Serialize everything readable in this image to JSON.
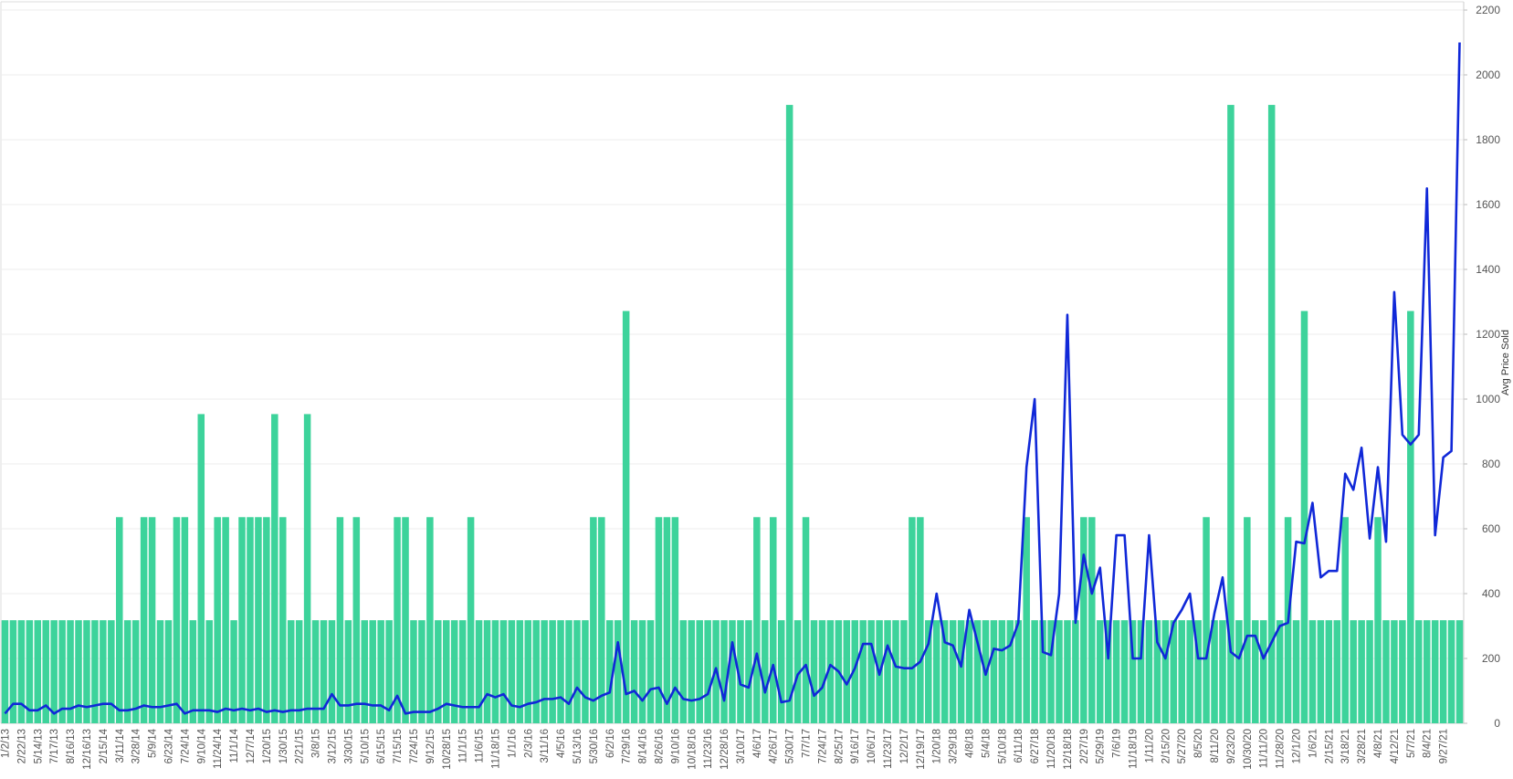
{
  "chart_data": {
    "type": "combo",
    "categories": [
      "1/2/13",
      null,
      "2/22/13",
      null,
      "5/14/13",
      null,
      "7/17/13",
      null,
      "8/16/13",
      null,
      "12/16/13",
      null,
      "2/15/14",
      null,
      "3/11/14",
      null,
      "3/28/14",
      null,
      "5/9/14",
      null,
      "6/23/14",
      null,
      "7/24/14",
      null,
      "9/10/14",
      null,
      "11/24/14",
      null,
      "11/1/14",
      null,
      "12/7/14",
      null,
      "1/20/15",
      null,
      "1/30/15",
      null,
      "2/21/15",
      null,
      "3/8/15",
      null,
      "3/12/15",
      null,
      "3/30/15",
      null,
      "5/10/15",
      null,
      "6/15/15",
      null,
      "7/15/15",
      null,
      "7/24/15",
      null,
      "9/12/15",
      null,
      "10/28/15",
      null,
      "11/1/15",
      null,
      "11/6/15",
      null,
      "11/18/15",
      null,
      "1/1/16",
      null,
      "2/3/16",
      null,
      "3/11/16",
      null,
      "4/5/16",
      null,
      "5/13/16",
      null,
      "5/30/16",
      null,
      "6/2/16",
      null,
      "7/29/16",
      null,
      "8/14/16",
      null,
      "8/26/16",
      null,
      "9/10/16",
      null,
      "10/18/16",
      null,
      "11/23/16",
      null,
      "12/28/16",
      null,
      "3/10/17",
      null,
      "4/6/17",
      null,
      "4/26/17",
      null,
      "5/30/17",
      null,
      "7/7/17",
      null,
      "7/24/17",
      null,
      "8/25/17",
      null,
      "9/16/17",
      null,
      "10/6/17",
      null,
      "11/23/17",
      null,
      "12/2/17",
      null,
      "12/19/17",
      null,
      "1/20/18",
      null,
      "3/29/18",
      null,
      "4/8/18",
      null,
      "5/4/18",
      null,
      "5/10/18",
      null,
      "6/11/18",
      null,
      "6/27/18",
      null,
      "11/20/18",
      null,
      "12/18/18",
      null,
      "2/27/19",
      null,
      "5/29/19",
      null,
      "7/6/19",
      null,
      "11/18/19",
      null,
      "1/11/20",
      null,
      "2/15/20",
      null,
      "5/27/20",
      null,
      "8/5/20",
      null,
      "8/11/20",
      null,
      "9/23/20",
      null,
      "10/30/20",
      null,
      "11/11/20",
      null,
      "11/28/20",
      null,
      "12/1/20",
      null,
      "1/6/21",
      null,
      "2/15/21",
      null,
      "3/18/21",
      null,
      "3/28/21",
      null,
      "4/8/21",
      null,
      "4/12/21",
      null,
      "5/7/21",
      null,
      "8/4/21",
      null,
      "9/27/21",
      null,
      null
    ],
    "series": [
      {
        "type": "bar",
        "color": "#3dd39b",
        "values": [
          1,
          1,
          1,
          1,
          1,
          1,
          1,
          1,
          1,
          1,
          1,
          1,
          1,
          1,
          2,
          1,
          1,
          2,
          2,
          1,
          1,
          2,
          2,
          1,
          3,
          1,
          2,
          2,
          1,
          2,
          2,
          2,
          2,
          3,
          2,
          1,
          1,
          3,
          1,
          1,
          1,
          2,
          1,
          2,
          1,
          1,
          1,
          1,
          2,
          2,
          1,
          1,
          2,
          1,
          1,
          1,
          1,
          2,
          1,
          1,
          1,
          1,
          1,
          1,
          1,
          1,
          1,
          1,
          1,
          1,
          1,
          1,
          2,
          2,
          1,
          1,
          4,
          1,
          1,
          1,
          2,
          2,
          2,
          1,
          1,
          1,
          1,
          1,
          1,
          1,
          1,
          1,
          2,
          1,
          2,
          1,
          6,
          1,
          2,
          1,
          1,
          1,
          1,
          1,
          1,
          1,
          1,
          1,
          1,
          1,
          1,
          2,
          2,
          1,
          1,
          1,
          1,
          1,
          1,
          1,
          1,
          1,
          1,
          1,
          1,
          2,
          1,
          1,
          1,
          1,
          1,
          1,
          2,
          2,
          1,
          1,
          1,
          1,
          1,
          1,
          1,
          1,
          1,
          1,
          1,
          1,
          1,
          2,
          1,
          1,
          6,
          1,
          2,
          1,
          1,
          6,
          1,
          2,
          1,
          4,
          1,
          1,
          1,
          1,
          2,
          1,
          1,
          1,
          2,
          1,
          1,
          1,
          4,
          1,
          1,
          1,
          1,
          1,
          1
        ]
      },
      {
        "type": "line",
        "axis": "y2",
        "color": "#1028d8",
        "values": [
          30,
          60,
          60,
          40,
          40,
          55,
          30,
          45,
          45,
          55,
          50,
          55,
          60,
          60,
          40,
          40,
          45,
          55,
          50,
          50,
          55,
          60,
          30,
          40,
          40,
          40,
          35,
          45,
          40,
          45,
          40,
          45,
          35,
          40,
          35,
          40,
          40,
          45,
          45,
          45,
          90,
          55,
          55,
          60,
          60,
          55,
          55,
          40,
          85,
          30,
          35,
          35,
          35,
          45,
          60,
          55,
          50,
          50,
          50,
          90,
          80,
          90,
          55,
          50,
          60,
          65,
          75,
          75,
          80,
          60,
          110,
          80,
          70,
          85,
          95,
          250,
          90,
          100,
          70,
          105,
          110,
          60,
          110,
          75,
          70,
          75,
          90,
          170,
          70,
          250,
          120,
          110,
          215,
          95,
          180,
          65,
          70,
          150,
          180,
          85,
          110,
          180,
          160,
          120,
          170,
          245,
          245,
          150,
          240,
          175,
          170,
          170,
          190,
          245,
          400,
          250,
          240,
          175,
          350,
          250,
          150,
          230,
          225,
          240,
          310,
          790,
          1000,
          220,
          210,
          400,
          1260,
          310,
          520,
          400,
          480,
          200,
          580,
          580,
          200,
          200,
          580,
          250,
          200,
          310,
          350,
          400,
          200,
          200,
          340,
          450,
          220,
          200,
          270,
          270,
          200,
          250,
          300,
          310,
          560,
          555,
          680,
          450,
          470,
          470,
          770,
          720,
          850,
          570,
          790,
          560,
          1330,
          890,
          860,
          890,
          1650,
          580,
          820,
          840,
          2100
        ]
      }
    ],
    "ylim": [
      0,
      6.92
    ],
    "y2lim": [
      0,
      2200
    ],
    "y2ticks": [
      0,
      200,
      400,
      600,
      800,
      1000,
      1200,
      1400,
      1600,
      1800,
      2000,
      2200
    ],
    "y2label": "Avg Price Sold",
    "grid": true
  }
}
